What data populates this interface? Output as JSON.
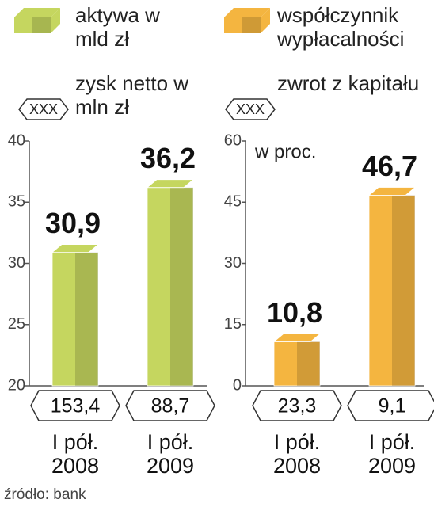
{
  "chart_data": [
    {
      "type": "bar",
      "categories": [
        "I pół. 2008",
        "I pół. 2009"
      ],
      "series": [
        {
          "name": "aktywa w mld zł",
          "color": "#c5d65f",
          "values": [
            30.9,
            36.2
          ],
          "value_labels": [
            "30,9",
            "36,2"
          ]
        },
        {
          "name": "zysk netto w mln zł",
          "display": "badge",
          "legend_symbol": "XXX",
          "values": [
            153.4,
            88.7
          ],
          "value_labels": [
            "153,4",
            "88,7"
          ]
        }
      ],
      "ylim": [
        20,
        40
      ],
      "yticks": [
        20,
        25,
        30,
        35,
        40
      ]
    },
    {
      "type": "bar",
      "categories": [
        "I pół. 2008",
        "I pół. 2009"
      ],
      "unit_label": "w proc.",
      "series": [
        {
          "name": "współczynnik wypłacalności",
          "color": "#f4b540",
          "values": [
            10.8,
            46.7
          ],
          "value_labels": [
            "10,8",
            "46,7"
          ]
        },
        {
          "name": "zwrot z kapitału",
          "display": "badge",
          "legend_symbol": "XXX",
          "values": [
            23.3,
            9.1
          ],
          "value_labels": [
            "23,3",
            "9,1"
          ]
        }
      ],
      "ylim": [
        0,
        60
      ],
      "yticks": [
        0,
        15,
        30,
        45,
        60
      ]
    }
  ],
  "source": "źródło: bank"
}
